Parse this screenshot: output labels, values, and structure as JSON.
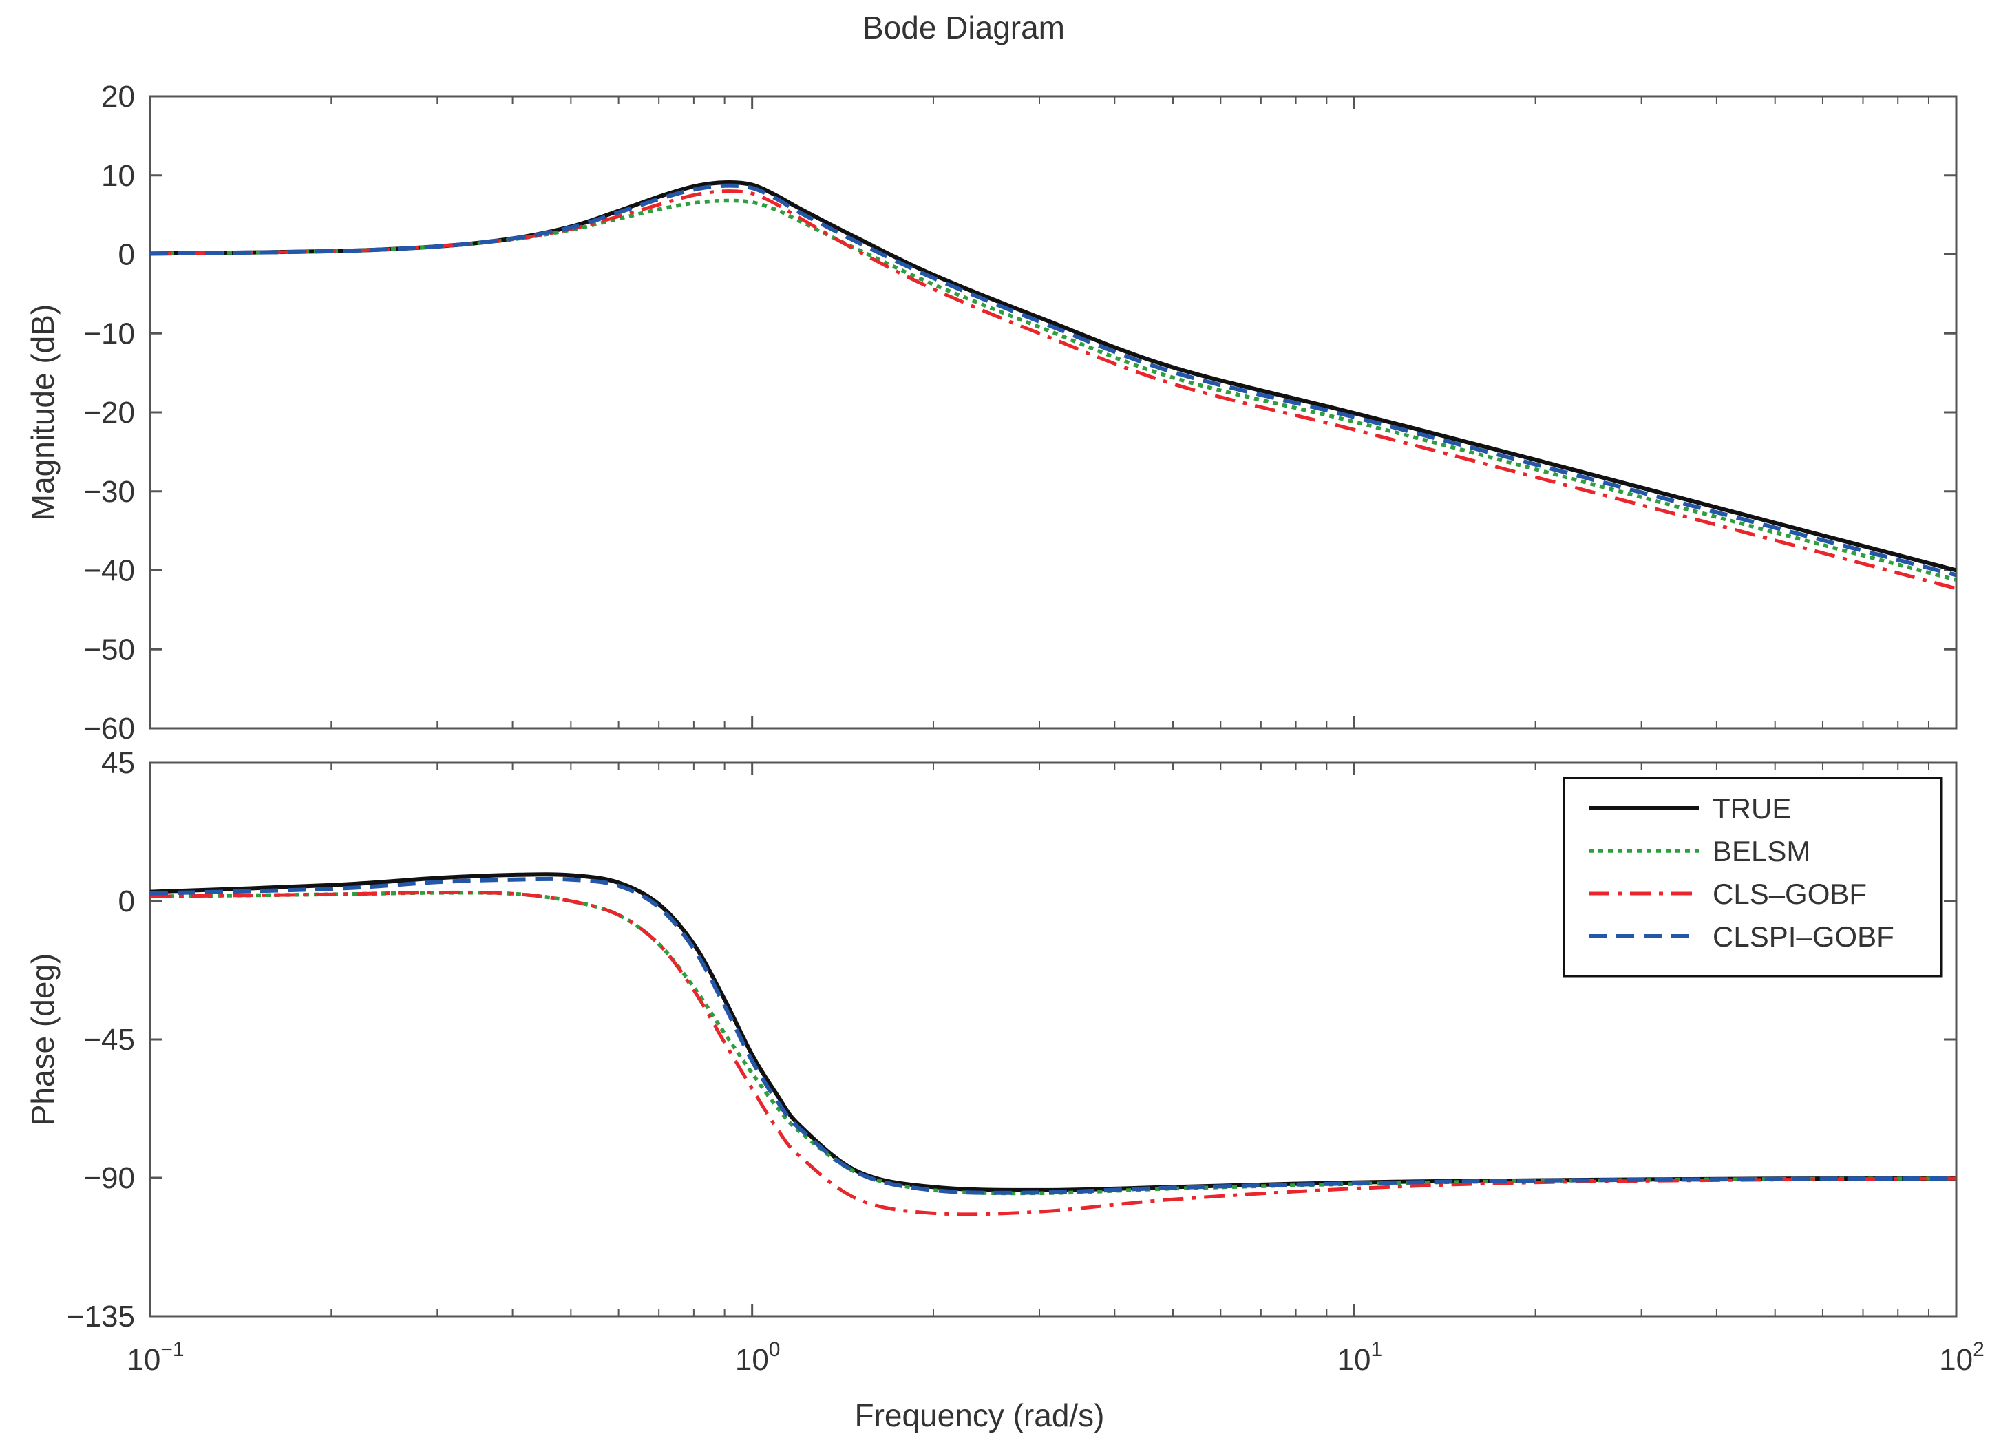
{
  "chart_data": {
    "type": "line",
    "title": "Bode Diagram",
    "xlabel": "Frequency  (rad/s)",
    "x_scale": "log",
    "xlim": [
      0.1,
      100
    ],
    "x_ticks": [
      {
        "value": 0.1,
        "base": "10",
        "exp": "−1"
      },
      {
        "value": 1,
        "base": "10",
        "exp": "0"
      },
      {
        "value": 10,
        "base": "10",
        "exp": "1"
      },
      {
        "value": 100,
        "base": "10",
        "exp": "2"
      }
    ],
    "x_points": [
      0.1,
      0.2,
      0.3,
      0.4,
      0.5,
      0.6,
      0.7,
      0.8,
      0.9,
      1.0,
      1.1,
      1.2,
      1.5,
      2,
      3,
      5,
      10,
      20,
      50,
      100
    ],
    "panels": [
      {
        "id": "magnitude",
        "ylabel": "Magnitude (dB)",
        "ylim": [
          -60,
          20
        ],
        "y_ticks": [
          {
            "value": 20,
            "label": "20"
          },
          {
            "value": 10,
            "label": "10"
          },
          {
            "value": 0,
            "label": "0"
          },
          {
            "value": -10,
            "label": "−10"
          },
          {
            "value": -20,
            "label": "−20"
          },
          {
            "value": -30,
            "label": "−30"
          },
          {
            "value": -40,
            "label": "−40"
          },
          {
            "value": -50,
            "label": "−50"
          },
          {
            "value": -60,
            "label": "−60"
          }
        ],
        "series": [
          {
            "name": "TRUE",
            "values": [
              0.1,
              0.4,
              1.0,
              2.0,
              3.5,
              5.5,
              7.3,
              8.6,
              9.1,
              8.8,
              7.4,
              5.8,
              2.0,
              -2.6,
              -8.0,
              -14.3,
              -20.1,
              -26.0,
              -34.0,
              -40.0
            ]
          },
          {
            "name": "BELSM",
            "values": [
              0.1,
              0.4,
              1.0,
              1.9,
              3.1,
              4.5,
              5.7,
              6.5,
              6.8,
              6.6,
              5.6,
              4.2,
              0.6,
              -3.8,
              -9.2,
              -15.6,
              -21.2,
              -27.2,
              -35.2,
              -41.2
            ]
          },
          {
            "name": "CLS–GOBF",
            "values": [
              0.1,
              0.4,
              1.0,
              1.9,
              3.2,
              4.8,
              6.3,
              7.5,
              8.0,
              7.7,
              6.3,
              4.6,
              0.4,
              -4.4,
              -10.0,
              -16.4,
              -22.2,
              -28.2,
              -36.2,
              -42.3
            ]
          },
          {
            "name": "CLSPI–GOBF",
            "values": [
              0.1,
              0.4,
              1.0,
              2.0,
              3.4,
              5.3,
              7.0,
              8.2,
              8.7,
              8.4,
              7.0,
              5.3,
              1.5,
              -3.0,
              -8.5,
              -14.9,
              -20.6,
              -26.6,
              -34.6,
              -40.6
            ]
          }
        ]
      },
      {
        "id": "phase",
        "ylabel": "Phase (deg)",
        "ylim": [
          -135,
          45
        ],
        "y_ticks": [
          {
            "value": 45,
            "label": "45"
          },
          {
            "value": 0,
            "label": "0"
          },
          {
            "value": -45,
            "label": "−45"
          },
          {
            "value": -90,
            "label": "−90"
          },
          {
            "value": -135,
            "label": "−135"
          }
        ],
        "series": [
          {
            "name": "TRUE",
            "values": [
              3.0,
              5.2,
              7.5,
              8.5,
              8.4,
              6.0,
              -1.0,
              -14.0,
              -32.0,
              -50.0,
              -63.0,
              -73.0,
              -88.0,
              -93.0,
              -94.0,
              -93.0,
              -91.5,
              -90.8,
              -90.3,
              -90.2
            ]
          },
          {
            "name": "BELSM",
            "values": [
              1.5,
              2.2,
              2.7,
              2.4,
              0.0,
              -4.5,
              -14.0,
              -28.0,
              -43.0,
              -56.0,
              -67.0,
              -75.0,
              -88.5,
              -94.0,
              -95.0,
              -93.5,
              -92.0,
              -91.0,
              -90.4,
              -90.2
            ]
          },
          {
            "name": "CLS–GOBF",
            "values": [
              1.5,
              2.2,
              2.8,
              2.4,
              0.0,
              -4.5,
              -14.0,
              -29.0,
              -46.0,
              -61.0,
              -74.0,
              -83.0,
              -97.0,
              -101.5,
              -101.0,
              -97.0,
              -93.5,
              -91.5,
              -90.6,
              -90.2
            ]
          },
          {
            "name": "CLSPI–GOBF",
            "values": [
              2.5,
              4.0,
              6.2,
              7.0,
              7.0,
              5.0,
              -2.0,
              -15.5,
              -34.0,
              -52.0,
              -65.0,
              -74.0,
              -88.5,
              -94.0,
              -94.8,
              -93.2,
              -91.8,
              -90.9,
              -90.4,
              -90.2
            ]
          }
        ]
      }
    ],
    "legend": {
      "position": "top-right of phase panel",
      "entries": [
        {
          "name": "TRUE",
          "style": "solid",
          "color": "#111111"
        },
        {
          "name": "BELSM",
          "style": "dotted",
          "color": "#2e9e3e"
        },
        {
          "name": "CLS–GOBF",
          "style": "dash-dot",
          "color": "#e8262b"
        },
        {
          "name": "CLSPI–GOBF",
          "style": "dashed",
          "color": "#2457a8"
        }
      ]
    }
  }
}
